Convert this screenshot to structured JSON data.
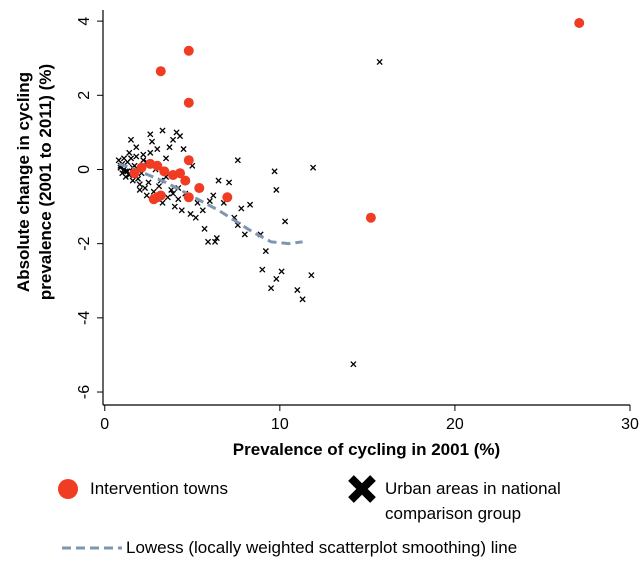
{
  "chart_data": {
    "type": "scatter",
    "x_label": "Prevalence of cycling in 2001 (%)",
    "y_label": "Absolute change in cycling prevalence (2001 to 2011) (%)",
    "xlim": [
      -0.1,
      30
    ],
    "xticks": [
      0,
      10,
      20,
      30
    ],
    "ylim": [
      -6.35,
      4.3
    ],
    "yticks": [
      -6,
      -4,
      -2,
      0,
      2,
      4
    ],
    "grid": false,
    "series": [
      {
        "name": "Urban areas in national comparison group",
        "color": "#000000",
        "marker": "x",
        "x": [
          15.7,
          14.2,
          11.9,
          9.7,
          9.8,
          7.6,
          10.3,
          11.3,
          11.0,
          11.8,
          9.8,
          10.1,
          9.0,
          9.2,
          9.5,
          8.9,
          8.3,
          7.1,
          6.5,
          6.2,
          6.0,
          6.4,
          6.3,
          5.9,
          7.4,
          7.8,
          8.0,
          7.6,
          6.8,
          5.7,
          5.2,
          4.4,
          4.1,
          4.3,
          3.9,
          3.3,
          2.6,
          2.7,
          1.5,
          1.8,
          1.4,
          2.2,
          3.0,
          3.7,
          4.5,
          5.0,
          3.5,
          2.4,
          0.8,
          0.9,
          1.0,
          1.1,
          1.2,
          1.3,
          1.0,
          1.2,
          1.4,
          1.6,
          1.7,
          1.9,
          2.0,
          2.1,
          2.3,
          2.5,
          2.8,
          3.1,
          3.3,
          3.6,
          3.8,
          4.0,
          4.2,
          4.6,
          4.9,
          5.3,
          5.6,
          1.5,
          1.8,
          2.2,
          2.6,
          2.9,
          3.2,
          3.5,
          3.9,
          4.2,
          1.1,
          1.3,
          1.6,
          2.0,
          2.4,
          0.9
        ],
        "values": [
          2.9,
          -5.25,
          0.05,
          -0.05,
          -0.55,
          0.25,
          -1.4,
          -3.5,
          -3.25,
          -2.85,
          -2.95,
          -2.75,
          -2.7,
          -2.2,
          -3.2,
          -1.75,
          -0.95,
          -0.35,
          -0.3,
          -0.7,
          -0.85,
          -1.85,
          -1.95,
          -1.95,
          -1.3,
          -1.05,
          -1.75,
          -1.5,
          -0.9,
          -1.6,
          -1.3,
          -1.1,
          1.0,
          0.9,
          0.8,
          1.05,
          0.95,
          0.75,
          0.8,
          0.6,
          0.45,
          0.4,
          0.55,
          0.6,
          0.55,
          0.1,
          0.3,
          0.2,
          0.25,
          0.1,
          0.15,
          0.0,
          -0.05,
          0.2,
          -0.1,
          -0.2,
          -0.15,
          -0.3,
          0.1,
          -0.25,
          -0.4,
          -0.1,
          -0.5,
          -0.35,
          -0.6,
          -0.45,
          -0.9,
          -0.75,
          -0.55,
          -1.0,
          -0.8,
          -0.65,
          -1.2,
          -0.9,
          -1.1,
          0.3,
          0.35,
          0.25,
          0.45,
          0.0,
          -0.3,
          -0.2,
          -0.65,
          -0.5,
          0.3,
          -0.05,
          0.05,
          -0.55,
          -0.7,
          0.05
        ]
      },
      {
        "name": "Lowess (locally weighted scatterplot smoothing) line",
        "color": "#7f96b3",
        "marker": "dashed-line",
        "x": [
          0.8,
          1.5,
          2.5,
          3.5,
          4.5,
          5.5,
          6.5,
          7.5,
          8.5,
          9.5,
          10.5,
          11.3
        ],
        "values": [
          0.15,
          0.05,
          -0.15,
          -0.35,
          -0.6,
          -0.85,
          -1.1,
          -1.4,
          -1.7,
          -1.95,
          -2.0,
          -1.95
        ]
      },
      {
        "name": "Intervention towns",
        "color": "#f03c23",
        "marker": "circle",
        "x": [
          3.2,
          4.8,
          4.8,
          27.1,
          15.2,
          4.8,
          2.6,
          3.0,
          3.4,
          1.7,
          2.1,
          3.9,
          4.3,
          5.4,
          4.6,
          7.0,
          4.8,
          3.0,
          3.2,
          2.8
        ],
        "values": [
          2.65,
          3.2,
          1.8,
          3.95,
          -1.3,
          0.25,
          0.15,
          0.1,
          -0.05,
          -0.1,
          0.05,
          -0.15,
          -0.1,
          -0.5,
          -0.3,
          -0.75,
          -0.75,
          -0.75,
          -0.7,
          -0.8
        ]
      }
    ]
  }
}
